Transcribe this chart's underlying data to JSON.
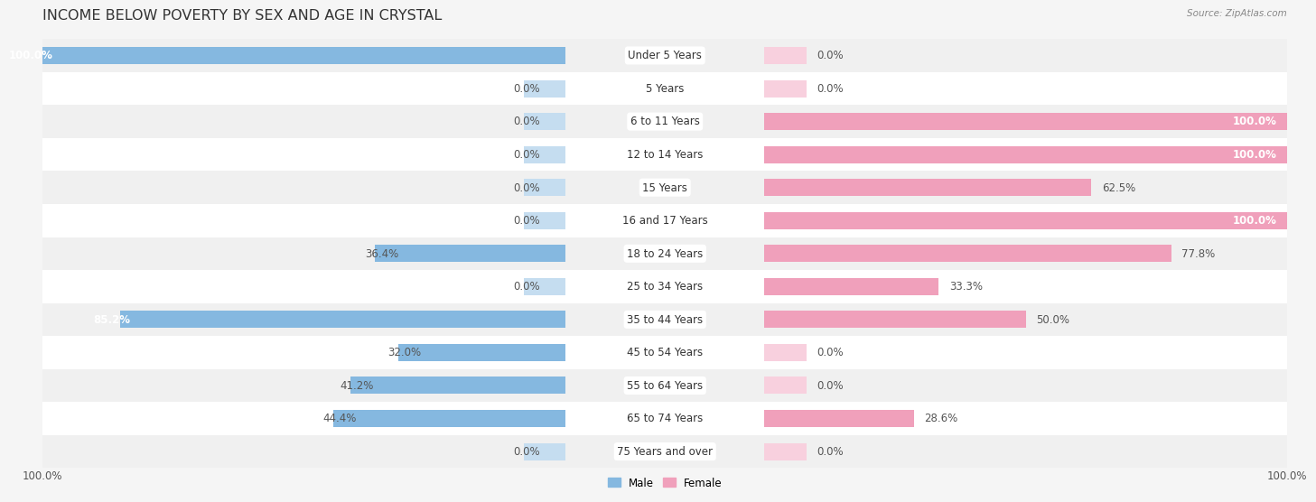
{
  "title": "INCOME BELOW POVERTY BY SEX AND AGE IN CRYSTAL",
  "source": "Source: ZipAtlas.com",
  "categories": [
    "Under 5 Years",
    "5 Years",
    "6 to 11 Years",
    "12 to 14 Years",
    "15 Years",
    "16 and 17 Years",
    "18 to 24 Years",
    "25 to 34 Years",
    "35 to 44 Years",
    "45 to 54 Years",
    "55 to 64 Years",
    "65 to 74 Years",
    "75 Years and over"
  ],
  "male_values": [
    100.0,
    0.0,
    0.0,
    0.0,
    0.0,
    0.0,
    36.4,
    0.0,
    85.2,
    32.0,
    41.2,
    44.4,
    0.0
  ],
  "female_values": [
    0.0,
    0.0,
    100.0,
    100.0,
    62.5,
    100.0,
    77.8,
    33.3,
    50.0,
    0.0,
    0.0,
    28.6,
    0.0
  ],
  "male_color": "#85b8e0",
  "female_color": "#f0a0bb",
  "male_stub_color": "#c5ddf0",
  "female_stub_color": "#f8d0de",
  "row_bg_even": "#f0f0f0",
  "row_bg_odd": "#ffffff",
  "title_fontsize": 11.5,
  "label_fontsize": 8.5,
  "value_fontsize": 8.5,
  "axis_tick_fontsize": 8.5,
  "bar_height": 0.52,
  "stub_size": 8.0,
  "max_val": 100.0,
  "background_color": "#f5f5f5",
  "legend_male_color": "#85b8e0",
  "legend_female_color": "#f0a0bb",
  "center_label_bg": "#ffffff",
  "center_label_color": "#333333"
}
